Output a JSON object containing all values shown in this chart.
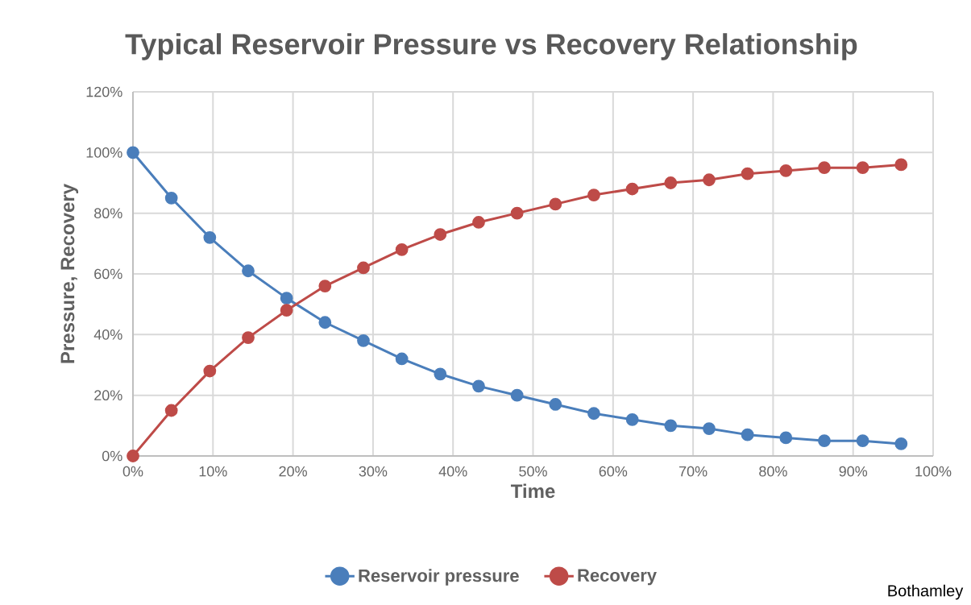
{
  "chart_data": {
    "type": "line",
    "title": "Typical Reservoir Pressure vs Recovery Relationship",
    "xlabel": "Time",
    "ylabel": "Pressure, Recovery",
    "x": [
      0,
      4.8,
      9.6,
      14.4,
      19.2,
      24,
      28.8,
      33.6,
      38.4,
      43.2,
      48,
      52.8,
      57.6,
      62.4,
      67.2,
      72,
      76.8,
      81.6,
      86.4,
      91.2,
      96
    ],
    "series": [
      {
        "name": "Reservoir pressure",
        "color": "#4a7ebb",
        "values": [
          100,
          85,
          72,
          61,
          52,
          44,
          38,
          32,
          27,
          23,
          20,
          17,
          14,
          12,
          10,
          9,
          7,
          6,
          5,
          5,
          4
        ]
      },
      {
        "name": "Recovery",
        "color": "#be4b48",
        "values": [
          0,
          15,
          28,
          39,
          48,
          56,
          62,
          68,
          73,
          77,
          80,
          83,
          86,
          88,
          90,
          91,
          93,
          94,
          95,
          95,
          96
        ]
      }
    ],
    "xlim": [
      0,
      100
    ],
    "xticks": [
      {
        "value": 0,
        "label": "0%"
      },
      {
        "value": 10,
        "label": "10%"
      },
      {
        "value": 20,
        "label": "20%"
      },
      {
        "value": 30,
        "label": "30%"
      },
      {
        "value": 40,
        "label": "40%"
      },
      {
        "value": 50,
        "label": "50%"
      },
      {
        "value": 60,
        "label": "60%"
      },
      {
        "value": 70,
        "label": "70%"
      },
      {
        "value": 80,
        "label": "80%"
      },
      {
        "value": 90,
        "label": "90%"
      },
      {
        "value": 100,
        "label": "100%"
      }
    ],
    "ylim": [
      0,
      120
    ],
    "yticks": [
      {
        "value": 0,
        "label": "0%"
      },
      {
        "value": 20,
        "label": "20%"
      },
      {
        "value": 40,
        "label": "40%"
      },
      {
        "value": 60,
        "label": "60%"
      },
      {
        "value": 80,
        "label": "80%"
      },
      {
        "value": 100,
        "label": "100%"
      },
      {
        "value": 120,
        "label": "120%"
      }
    ],
    "grid": true,
    "legend": "bottom",
    "marker": "circle",
    "line_style": "solid",
    "annotations": [
      "Bothamley"
    ]
  }
}
